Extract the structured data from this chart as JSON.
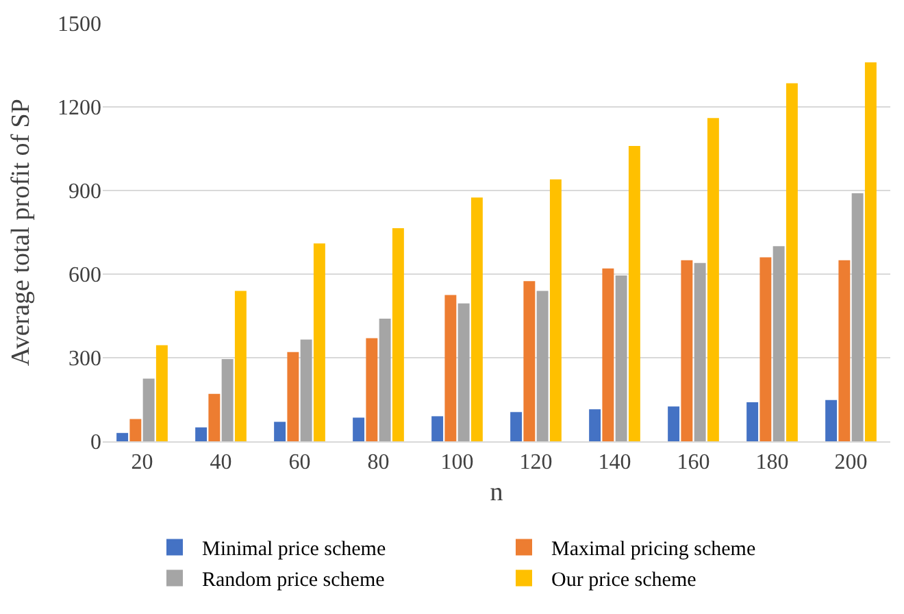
{
  "chart_data": {
    "type": "bar",
    "xlabel": "n",
    "ylabel": "Average total profit of SP",
    "categories": [
      "20",
      "40",
      "60",
      "80",
      "100",
      "120",
      "140",
      "160",
      "180",
      "200"
    ],
    "series": [
      {
        "name": "Minimal price scheme",
        "color": "#4472c4",
        "values": [
          30,
          50,
          70,
          85,
          90,
          105,
          115,
          125,
          140,
          148
        ]
      },
      {
        "name": "Maximal pricing scheme",
        "color": "#ed7d31",
        "values": [
          80,
          170,
          320,
          370,
          525,
          575,
          620,
          650,
          660,
          650
        ]
      },
      {
        "name": "Random price scheme",
        "color": "#a5a5a5",
        "values": [
          225,
          295,
          365,
          440,
          495,
          540,
          595,
          640,
          700,
          890
        ]
      },
      {
        "name": "Our price scheme",
        "color": "#ffc000",
        "values": [
          345,
          540,
          710,
          765,
          875,
          940,
          1060,
          1160,
          1285,
          1360
        ]
      }
    ],
    "ylim": [
      0,
      1500
    ],
    "yticks": [
      0,
      300,
      600,
      900,
      1200,
      1500
    ],
    "grid": "y",
    "legend": "bottom"
  }
}
